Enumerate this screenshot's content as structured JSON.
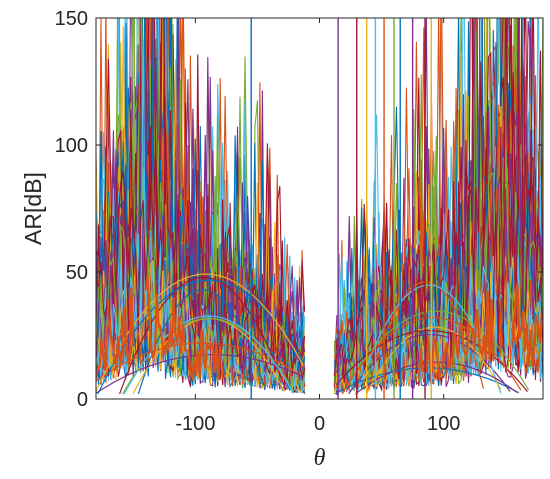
{
  "chart_data": {
    "type": "line",
    "title": "",
    "xlabel": "θ",
    "ylabel": "AR[dB]",
    "xlim": [
      -180,
      180
    ],
    "ylim": [
      0,
      150
    ],
    "xticks": [
      -100,
      0,
      100
    ],
    "xtick_labels": [
      "-100",
      "0",
      "100"
    ],
    "yticks": [
      0,
      50,
      100,
      150
    ],
    "ytick_labels": [
      "0",
      "50",
      "100",
      "150"
    ],
    "grid": false,
    "legend": "none",
    "series_colors": [
      "#0072BD",
      "#D95319",
      "#EDB120",
      "#7E2F8E",
      "#77AC30",
      "#4DBEEE",
      "#A2142F"
    ],
    "series_count": 84,
    "gap_x_range": [
      -12,
      12
    ],
    "spike_x_positions": [
      -55,
      15,
      30,
      38,
      45,
      52,
      60,
      65,
      75,
      85,
      90
    ],
    "envelope": {
      "x": [
        -180,
        -160,
        -145,
        -130,
        -120,
        -105,
        -95,
        -80,
        -60,
        -40,
        -25,
        -12,
        12,
        25,
        40,
        60,
        80,
        90,
        105,
        120,
        135,
        150,
        165,
        180
      ],
      "y": [
        70,
        110,
        140,
        150,
        125,
        70,
        80,
        65,
        60,
        50,
        40,
        25,
        25,
        40,
        50,
        55,
        70,
        75,
        80,
        100,
        130,
        150,
        125,
        90
      ]
    }
  }
}
